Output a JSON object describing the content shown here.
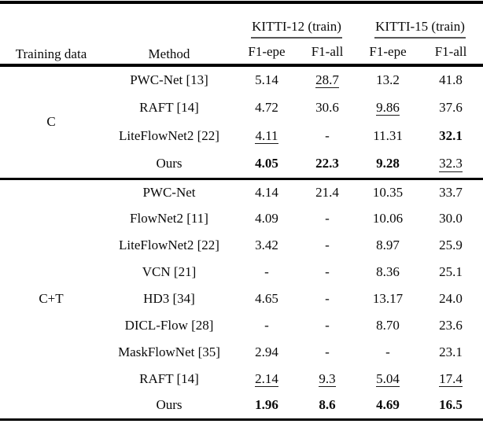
{
  "table": {
    "headers": {
      "training_data": "Training data",
      "method": "Method",
      "group1": "KITTI-12 (train)",
      "group2": "KITTI-15 (train)",
      "sub1": "F1-epe",
      "sub2": "F1-all",
      "sub3": "F1-epe",
      "sub4": "F1-all"
    },
    "sections": [
      {
        "training_data": "C",
        "rows": [
          {
            "method": "PWC-Net [13]",
            "cells": [
              {
                "v": "5.14"
              },
              {
                "v": "28.7",
                "u": true
              },
              {
                "v": "13.2"
              },
              {
                "v": "41.8"
              }
            ]
          },
          {
            "method": "RAFT [14]",
            "cells": [
              {
                "v": "4.72"
              },
              {
                "v": "30.6"
              },
              {
                "v": "9.86",
                "u": true
              },
              {
                "v": "37.6"
              }
            ]
          },
          {
            "method": "LiteFlowNet2 [22]",
            "cells": [
              {
                "v": "4.11",
                "u": true
              },
              {
                "v": "-"
              },
              {
                "v": "11.31"
              },
              {
                "v": "32.1",
                "b": true
              }
            ]
          },
          {
            "method": "Ours",
            "cells": [
              {
                "v": "4.05",
                "b": true
              },
              {
                "v": "22.3",
                "b": true
              },
              {
                "v": "9.28",
                "b": true
              },
              {
                "v": "32.3",
                "u": true
              }
            ]
          }
        ]
      },
      {
        "training_data": "C+T",
        "rows": [
          {
            "method": "PWC-Net",
            "cells": [
              {
                "v": "4.14"
              },
              {
                "v": "21.4"
              },
              {
                "v": "10.35"
              },
              {
                "v": "33.7"
              }
            ]
          },
          {
            "method": "FlowNet2 [11]",
            "cells": [
              {
                "v": "4.09"
              },
              {
                "v": "-"
              },
              {
                "v": "10.06"
              },
              {
                "v": "30.0"
              }
            ]
          },
          {
            "method": "LiteFlowNet2 [22]",
            "cells": [
              {
                "v": "3.42"
              },
              {
                "v": "-"
              },
              {
                "v": "8.97"
              },
              {
                "v": "25.9"
              }
            ]
          },
          {
            "method": "VCN [21]",
            "cells": [
              {
                "v": "-"
              },
              {
                "v": "-"
              },
              {
                "v": "8.36"
              },
              {
                "v": "25.1"
              }
            ]
          },
          {
            "method": "HD3 [34]",
            "cells": [
              {
                "v": "4.65"
              },
              {
                "v": "-"
              },
              {
                "v": "13.17"
              },
              {
                "v": "24.0"
              }
            ]
          },
          {
            "method": "DICL-Flow [28]",
            "cells": [
              {
                "v": "-"
              },
              {
                "v": "-"
              },
              {
                "v": "8.70"
              },
              {
                "v": "23.6"
              }
            ]
          },
          {
            "method": "MaskFlowNet [35]",
            "cells": [
              {
                "v": "2.94"
              },
              {
                "v": "-"
              },
              {
                "v": "-"
              },
              {
                "v": "23.1"
              }
            ]
          },
          {
            "method": "RAFT [14]",
            "cells": [
              {
                "v": "2.14",
                "u": true
              },
              {
                "v": "9.3",
                "u": true
              },
              {
                "v": "5.04",
                "u": true
              },
              {
                "v": "17.4",
                "u": true
              }
            ]
          },
          {
            "method": "Ours",
            "cells": [
              {
                "v": "1.96",
                "b": true
              },
              {
                "v": "8.6",
                "b": true
              },
              {
                "v": "4.69",
                "b": true
              },
              {
                "v": "16.5",
                "b": true
              }
            ]
          }
        ]
      }
    ]
  },
  "colors": {
    "rule": "#000000",
    "cmidrule": "#575757",
    "text": "#0a0a0a"
  }
}
